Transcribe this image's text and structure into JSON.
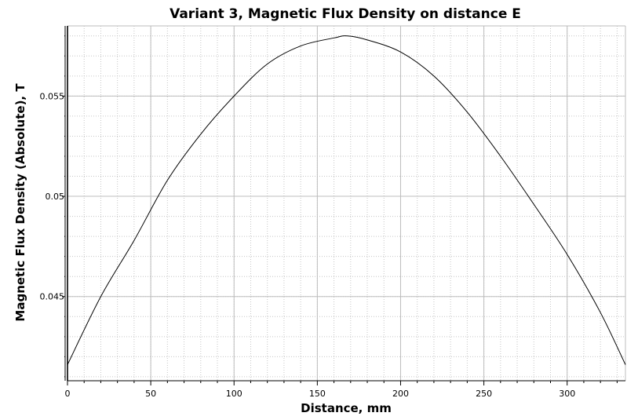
{
  "chart_data": {
    "type": "line",
    "title": "Variant 3,  Magnetic Flux Density on distance E",
    "xlabel": "Distance, mm",
    "ylabel": "Magnetic Flux Density (Absolute), T",
    "xlim": [
      0,
      335
    ],
    "ylim": [
      0.0408,
      0.0585
    ],
    "x_ticks": [
      0,
      50,
      100,
      150,
      200,
      250,
      300
    ],
    "x_tick_labels": [
      "0",
      "50",
      "100",
      "150",
      "200",
      "250",
      "300"
    ],
    "y_ticks": [
      0.045,
      0.05,
      0.055
    ],
    "y_tick_labels": [
      "0.045",
      "0.05",
      "0.055"
    ],
    "grid": true,
    "legend": "none",
    "series": [
      {
        "color": "#000000",
        "x": [
          0,
          20,
          40,
          60,
          80,
          100,
          120,
          140,
          160,
          168,
          180,
          200,
          220,
          240,
          260,
          280,
          300,
          320,
          335
        ],
        "y": [
          0.0416,
          0.045,
          0.0478,
          0.0508,
          0.0531,
          0.055,
          0.0566,
          0.0575,
          0.0579,
          0.058,
          0.0578,
          0.0572,
          0.056,
          0.0542,
          0.052,
          0.0496,
          0.0471,
          0.0442,
          0.0416
        ]
      }
    ]
  }
}
